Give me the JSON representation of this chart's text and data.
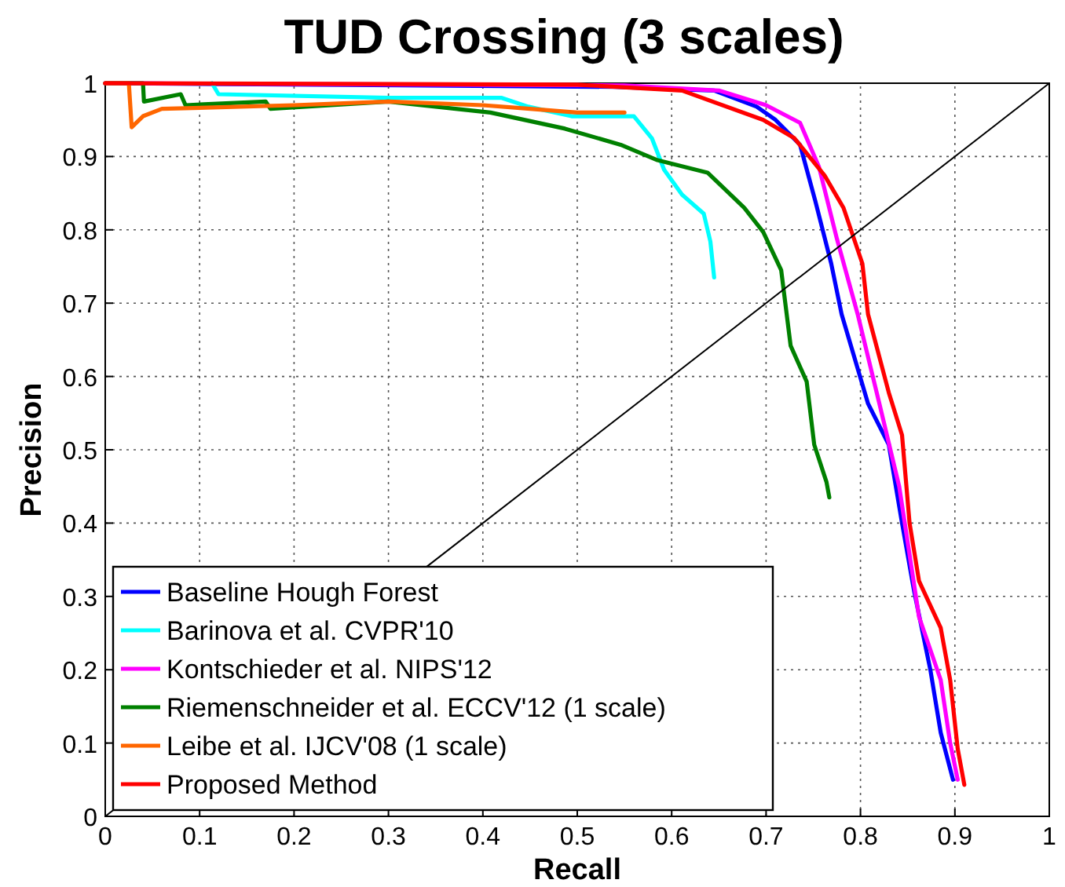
{
  "chart_data": {
    "type": "line",
    "title": "TUD Crossing (3 scales)",
    "xlabel": "Recall",
    "ylabel": "Precision",
    "xlim": [
      0,
      1
    ],
    "ylim": [
      0,
      1
    ],
    "xticks": [
      0,
      0.1,
      0.2,
      0.3,
      0.4,
      0.5,
      0.6,
      0.7,
      0.8,
      0.9,
      1
    ],
    "yticks": [
      0,
      0.1,
      0.2,
      0.3,
      0.4,
      0.5,
      0.6,
      0.7,
      0.8,
      0.9,
      1
    ],
    "grid": true,
    "legend": "bottom left",
    "line_style": "solid",
    "series": [
      {
        "name": "Baseline Hough Forest",
        "color": "#0000ff",
        "x": [
          0,
          0.54,
          0.645,
          0.69,
          0.71,
          0.736,
          0.752,
          0.769,
          0.78,
          0.808,
          0.83,
          0.844,
          0.857,
          0.874,
          0.885,
          0.898
        ],
        "values": [
          1,
          0.995,
          0.99,
          0.968,
          0.95,
          0.916,
          0.84,
          0.754,
          0.685,
          0.563,
          0.507,
          0.4,
          0.306,
          0.2,
          0.114,
          0.05
        ]
      },
      {
        "name": "Barinova et al. CVPR'10",
        "color": "#00ffff",
        "x": [
          0.113,
          0.12,
          0.3,
          0.42,
          0.448,
          0.494,
          0.56,
          0.579,
          0.592,
          0.611,
          0.634,
          0.641,
          0.645
        ],
        "values": [
          1,
          0.985,
          0.98,
          0.98,
          0.968,
          0.955,
          0.955,
          0.925,
          0.882,
          0.848,
          0.822,
          0.784,
          0.735
        ]
      },
      {
        "name": "Kontschieder et al. NIPS'12",
        "color": "#ff00ff",
        "x": [
          0,
          0.55,
          0.65,
          0.7,
          0.736,
          0.756,
          0.775,
          0.797,
          0.82,
          0.841,
          0.862,
          0.885,
          0.895,
          0.903
        ],
        "values": [
          1,
          0.997,
          0.99,
          0.97,
          0.946,
          0.886,
          0.788,
          0.685,
          0.563,
          0.45,
          0.272,
          0.186,
          0.1,
          0.05
        ]
      },
      {
        "name": "Riemenschneider et al. ECCV'12 (1 scale)",
        "color": "#008000",
        "x": [
          0,
          0.04,
          0.041,
          0.08,
          0.085,
          0.17,
          0.175,
          0.3,
          0.408,
          0.487,
          0.546,
          0.585,
          0.638,
          0.677,
          0.697,
          0.716,
          0.726,
          0.743,
          0.751,
          0.764,
          0.767
        ],
        "values": [
          1,
          1,
          0.975,
          0.985,
          0.97,
          0.975,
          0.965,
          0.975,
          0.96,
          0.938,
          0.916,
          0.895,
          0.878,
          0.83,
          0.797,
          0.745,
          0.642,
          0.593,
          0.507,
          0.456,
          0.435
        ]
      },
      {
        "name": "Leibe et al. IJCV'08 (1 scale)",
        "color": "#ff6600",
        "x": [
          0,
          0.025,
          0.028,
          0.04,
          0.06,
          0.2,
          0.3,
          0.4,
          0.45,
          0.5,
          0.55
        ],
        "values": [
          1,
          1,
          0.94,
          0.955,
          0.965,
          0.97,
          0.975,
          0.97,
          0.965,
          0.96,
          0.96
        ]
      },
      {
        "name": "Proposed Method",
        "color": "#ff0000",
        "x": [
          0,
          0.5,
          0.611,
          0.697,
          0.73,
          0.762,
          0.782,
          0.802,
          0.808,
          0.83,
          0.844,
          0.852,
          0.862,
          0.885,
          0.895,
          0.903,
          0.91
        ],
        "values": [
          1,
          0.998,
          0.99,
          0.95,
          0.925,
          0.874,
          0.83,
          0.754,
          0.685,
          0.578,
          0.52,
          0.4,
          0.321,
          0.257,
          0.186,
          0.092,
          0.043
        ]
      },
      {
        "color": "#000000",
        "x": [
          0,
          1
        ],
        "values": [
          0,
          1
        ]
      }
    ]
  }
}
